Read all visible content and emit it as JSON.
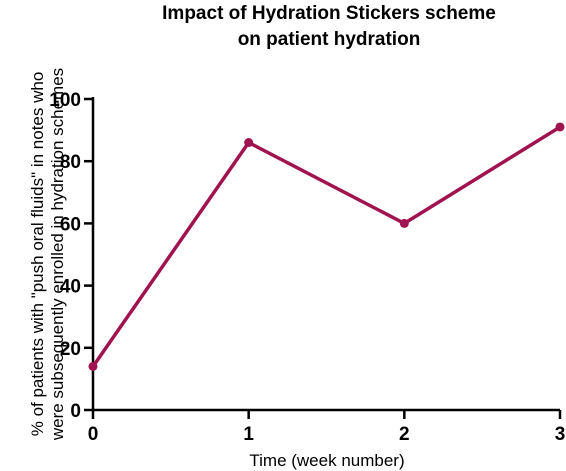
{
  "chart_data": {
    "type": "line",
    "title": [
      "Impact of Hydration Stickers scheme",
      "on patient hydration"
    ],
    "xlabel": "Time (week number)",
    "ylabel": [
      "% of patients with \"push oral fluids\" in notes who",
      "were subsequently enrolled in hydration schemes"
    ],
    "x": [
      0,
      1,
      2,
      3
    ],
    "series": [
      {
        "values": [
          14,
          86,
          60,
          91
        ],
        "color": "#a0134f"
      }
    ],
    "xlim": [
      0,
      3
    ],
    "ylim": [
      0,
      100
    ],
    "xticks": [
      "0",
      "1",
      "2",
      "3"
    ],
    "yticks": [
      "0",
      "20",
      "40",
      "60",
      "80",
      "100"
    ],
    "grid": false,
    "legend": "none"
  }
}
